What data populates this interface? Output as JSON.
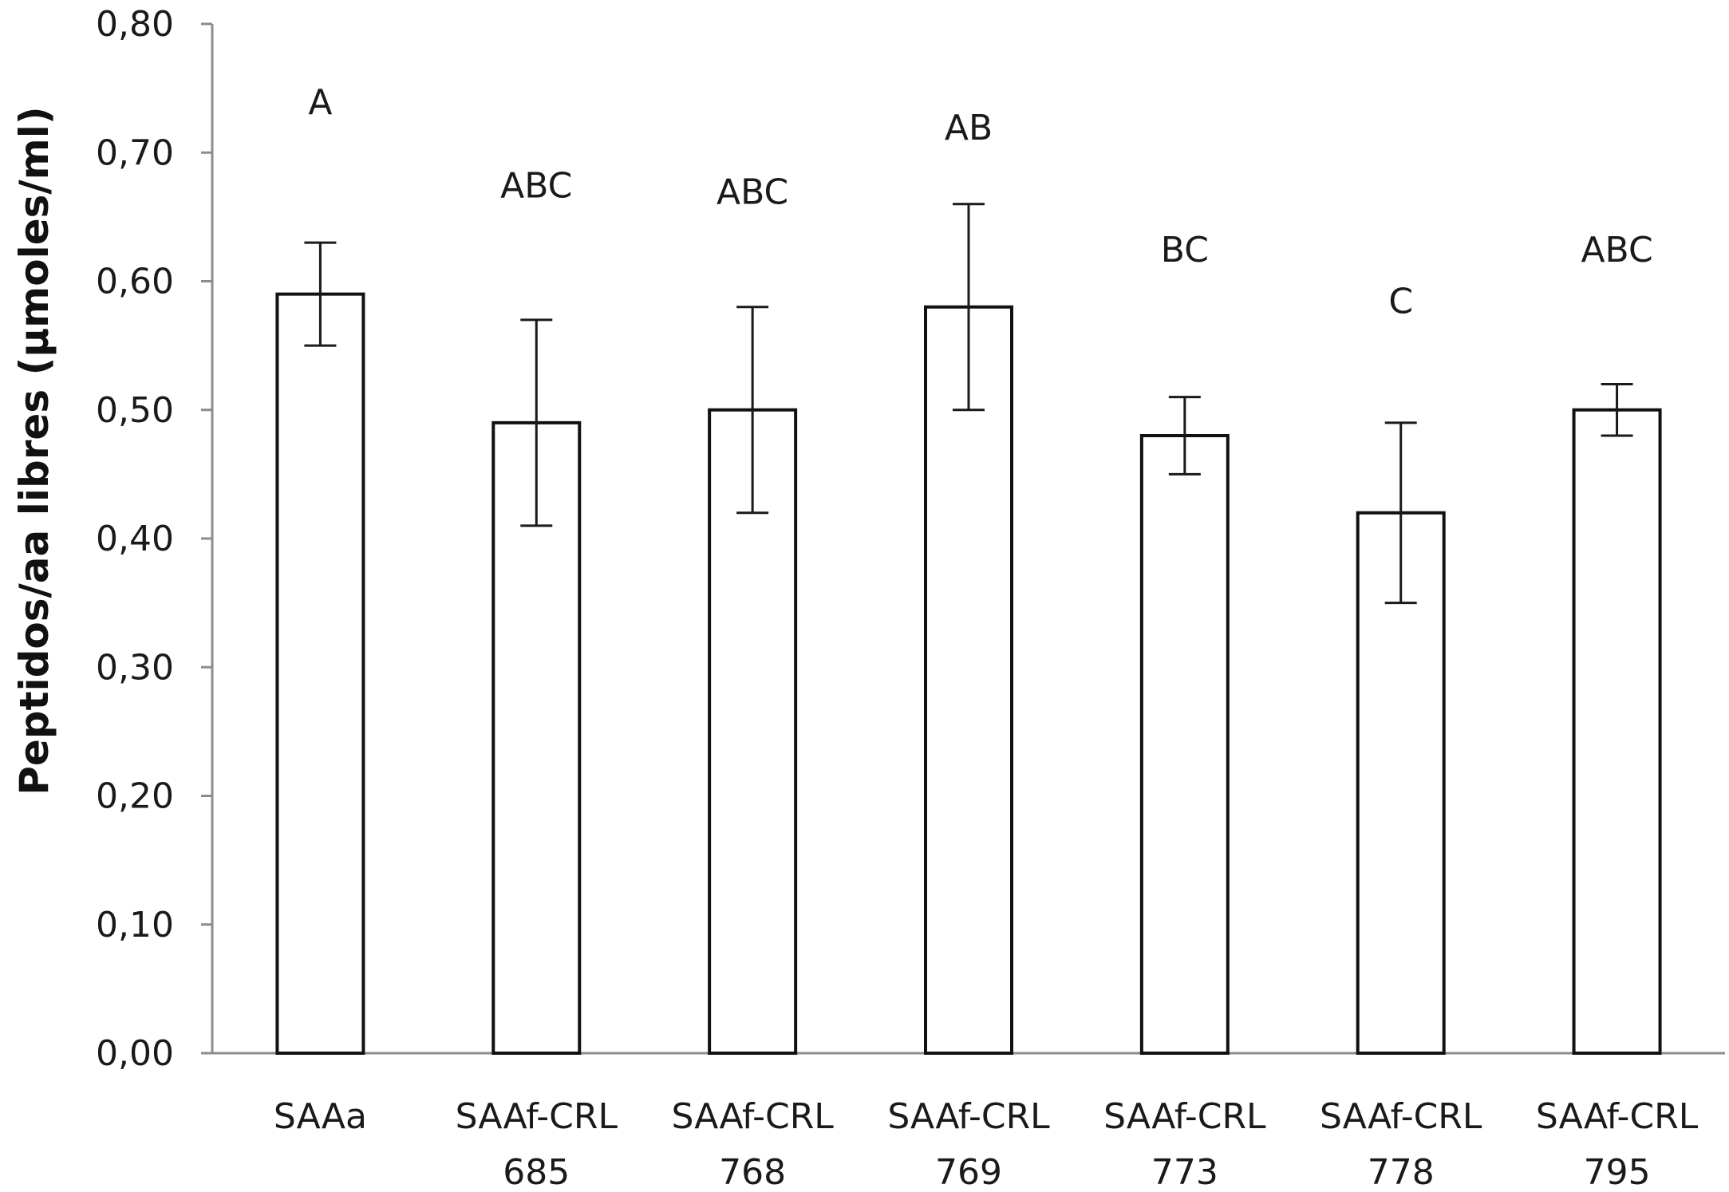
{
  "chart_data": {
    "type": "bar",
    "ylabel": "Peptidos/aa libres (µmoles/ml)",
    "xlabel": "",
    "ylim": [
      0,
      0.8
    ],
    "yticks": [
      "0,00",
      "0,10",
      "0,20",
      "0,30",
      "0,40",
      "0,50",
      "0,60",
      "0,70",
      "0,80"
    ],
    "grid": false,
    "categories": [
      [
        "SAAa"
      ],
      [
        "SAAf-CRL",
        "685"
      ],
      [
        "SAAf-CRL",
        "768"
      ],
      [
        "SAAf-CRL",
        "769"
      ],
      [
        "SAAf-CRL",
        "773"
      ],
      [
        "SAAf-CRL",
        "778"
      ],
      [
        "SAAf-CRL",
        "795"
      ]
    ],
    "values": [
      0.59,
      0.49,
      0.5,
      0.58,
      0.48,
      0.42,
      0.5
    ],
    "error_low": [
      0.55,
      0.41,
      0.42,
      0.5,
      0.45,
      0.35,
      0.48
    ],
    "error_high": [
      0.63,
      0.57,
      0.58,
      0.66,
      0.51,
      0.49,
      0.52
    ],
    "significance_labels": [
      "A",
      "ABC",
      "ABC",
      "AB",
      "BC",
      "C",
      "ABC"
    ],
    "significance_label_values": [
      0.74,
      0.675,
      0.67,
      0.72,
      0.625,
      0.585,
      0.625
    ],
    "colors": {
      "bar_fill": "#ffffff",
      "bar_stroke": "#111111",
      "axis": "#8c8c8c"
    }
  }
}
